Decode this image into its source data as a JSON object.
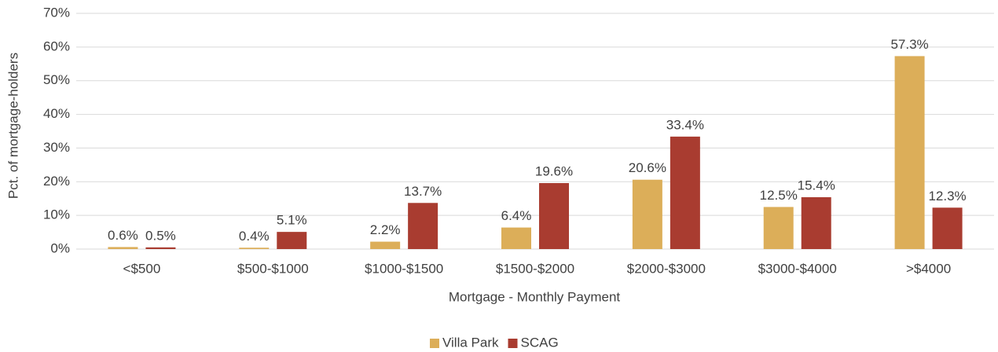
{
  "chart_data": {
    "type": "bar",
    "categories": [
      "<$500",
      "$500-$1000",
      "$1000-$1500",
      "$1500-$2000",
      "$2000-$3000",
      "$3000-$4000",
      ">$4000"
    ],
    "series": [
      {
        "name": "Villa Park",
        "color": "#dcae59",
        "values": [
          0.6,
          0.4,
          2.2,
          6.4,
          20.6,
          12.5,
          57.3
        ],
        "value_labels": [
          "0.6%",
          "0.4%",
          "2.2%",
          "6.4%",
          "20.6%",
          "12.5%",
          "57.3%"
        ]
      },
      {
        "name": "SCAG",
        "color": "#a93c30",
        "values": [
          0.5,
          5.1,
          13.7,
          19.6,
          33.4,
          15.4,
          12.3
        ],
        "value_labels": [
          "0.5%",
          "5.1%",
          "13.7%",
          "19.6%",
          "33.4%",
          "15.4%",
          "12.3%"
        ]
      }
    ],
    "xlabel": "Mortgage - Monthly Payment",
    "ylabel": "Pct. of mortgage-holders",
    "ylim": [
      0,
      70
    ],
    "yticks": [
      {
        "value": 0,
        "label": "0%"
      },
      {
        "value": 10,
        "label": "10%"
      },
      {
        "value": 20,
        "label": "20%"
      },
      {
        "value": 30,
        "label": "30%"
      },
      {
        "value": 40,
        "label": "40%"
      },
      {
        "value": 50,
        "label": "50%"
      },
      {
        "value": 60,
        "label": "60%"
      },
      {
        "value": 70,
        "label": "70%"
      }
    ],
    "grid": true,
    "legend": "bottom"
  }
}
